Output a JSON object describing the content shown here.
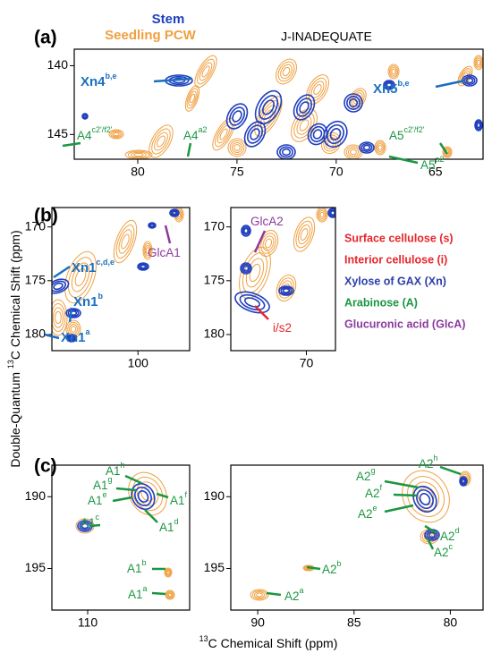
{
  "panel_labels": [
    "(a)",
    "(b)",
    "(c)"
  ],
  "legend": [
    {
      "text": "Stem",
      "color": "#1f3fbf"
    },
    {
      "text": "Seedling PCW",
      "color": "#f0a040"
    }
  ],
  "experiment": "J-INADEQUATE",
  "y_axis_title": {
    "prefix": "Double-Quantum ",
    "sup": "13",
    "suffix": "C Chemical Shift (ppm)"
  },
  "x_axis_title": {
    "sup": "13",
    "suffix": "C Chemical Shift (ppm)"
  },
  "plots": [
    {
      "xlim": [
        83.2,
        62.6
      ],
      "xticks": [
        80,
        75,
        70,
        65
      ],
      "ylim": [
        138.8,
        146.8
      ],
      "yticks": [
        140,
        145
      ]
    },
    {
      "xlim": [
        105,
        97
      ],
      "xticks": [
        100
      ],
      "ylim": [
        168.2,
        181.5
      ],
      "yticks": [
        170,
        175,
        180
      ]
    },
    {
      "xlim": [
        76.5,
        67.5
      ],
      "xticks": [
        70
      ],
      "ylim": [
        168.2,
        181.5
      ],
      "yticks": [
        170,
        175,
        180
      ]
    },
    {
      "xlim": [
        112,
        104.3
      ],
      "xticks": [
        110
      ],
      "ylim": [
        187.8,
        197.9
      ],
      "yticks": [
        190,
        195
      ]
    },
    {
      "xlim": [
        91.4,
        78.3
      ],
      "xticks": [
        90,
        85,
        80
      ],
      "ylim": [
        187.8,
        197.9
      ],
      "yticks": [
        190,
        195
      ]
    }
  ],
  "assignments": [
    {
      "text": "Surface cellulose (s)",
      "color": "#e8262a"
    },
    {
      "text": "Interior cellulose (i)",
      "color": "#e8262a"
    },
    {
      "text": "Xylose of GAX (Xn)",
      "color": "#2a3fa8"
    },
    {
      "text": "Arabinose (A)",
      "color": "#1a9641"
    },
    {
      "text": "Glucuronic acid (GlcA)",
      "color": "#8b3a9e"
    }
  ],
  "annotations": [
    {
      "text": "Xn4",
      "sup": "b,e",
      "color": "#1a6fbf"
    },
    {
      "text": "Xn5",
      "sup": "b,e",
      "color": "#1a6fbf"
    },
    {
      "text": "A4",
      "sup": "c2'/f2'",
      "color": "#1a9641"
    },
    {
      "text": "A4",
      "sup": "a2",
      "color": "#1a9641"
    },
    {
      "text": "A5",
      "sup": "c2'/f2'",
      "color": "#1a9641"
    },
    {
      "text": "A5",
      "sup": "a2",
      "color": "#1a9641"
    },
    {
      "text": "GlcA1",
      "color": "#8b3a9e"
    },
    {
      "text": "Xn1",
      "sup": "c,d,e",
      "color": "#1a6fbf"
    },
    {
      "text": "Xn1",
      "sup": "b",
      "color": "#1a6fbf"
    },
    {
      "text": "Xn1",
      "sup": "a",
      "color": "#1a6fbf"
    },
    {
      "text": "GlcA2",
      "color": "#8b3a9e"
    },
    {
      "text": "i/s2",
      "color": "#e8262a"
    },
    {
      "text": "A1",
      "sup": "h",
      "color": "#1a9641"
    },
    {
      "text": "A1",
      "sup": "g",
      "color": "#1a9641"
    },
    {
      "text": "A1",
      "sup": "e",
      "color": "#1a9641"
    },
    {
      "text": "A1",
      "sup": "f",
      "color": "#1a9641"
    },
    {
      "text": "A1",
      "sup": "c",
      "color": "#1a9641"
    },
    {
      "text": "A1",
      "sup": "d",
      "color": "#1a9641"
    },
    {
      "text": "A1",
      "sup": "b",
      "color": "#1a9641"
    },
    {
      "text": "A1",
      "sup": "a",
      "color": "#1a9641"
    },
    {
      "text": "A2",
      "sup": "g",
      "color": "#1a9641"
    },
    {
      "text": "A2",
      "sup": "h",
      "color": "#1a9641"
    },
    {
      "text": "A2",
      "sup": "f",
      "color": "#1a9641"
    },
    {
      "text": "A2",
      "sup": "e",
      "color": "#1a9641"
    },
    {
      "text": "A2",
      "sup": "d",
      "color": "#1a9641"
    },
    {
      "text": "A2",
      "sup": "c",
      "color": "#1a9641"
    },
    {
      "text": "A2",
      "sup": "b",
      "color": "#1a9641"
    },
    {
      "text": "A2",
      "sup": "a",
      "color": "#1a9641"
    }
  ]
}
